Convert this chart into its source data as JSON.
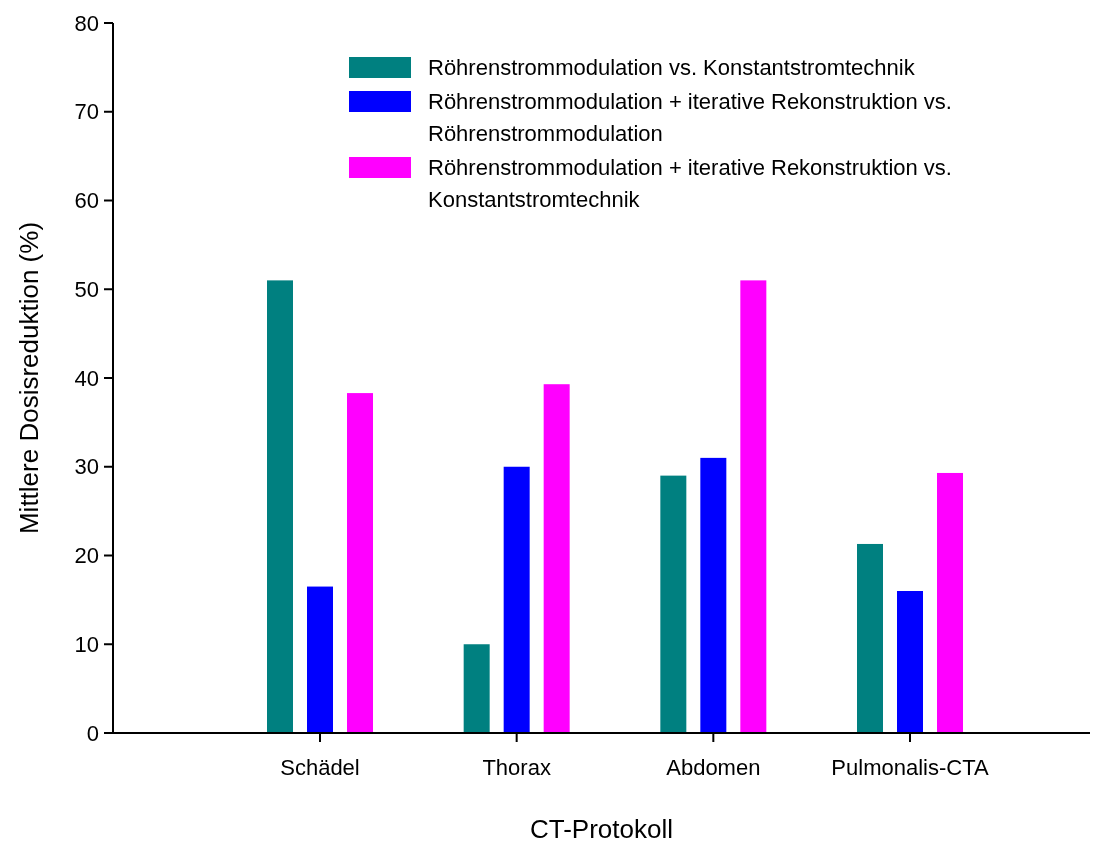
{
  "chart_data": {
    "type": "bar",
    "xlabel": "CT-Protokoll",
    "ylabel": "Mittlere Dosisreduktion (%)",
    "categories": [
      "Schädel",
      "Thorax",
      "Abdomen",
      "Pulmonalis-CTA"
    ],
    "series": [
      {
        "name": "Röhrenstrommodulation vs. Konstantstromtechnik",
        "color": "#008080",
        "values": [
          51,
          10,
          29,
          21.3
        ]
      },
      {
        "name": "Röhrenstrommodulation + iterative Rekonstruktion vs. Röhrenstrommodulation",
        "color": "#0000ff",
        "values": [
          16.5,
          30,
          31,
          16
        ]
      },
      {
        "name": "Röhrenstrommodulation + iterative Rekonstruktion vs. Konstantstromtechnik",
        "color": "#ff00ff",
        "values": [
          38.3,
          39.3,
          51,
          29.3
        ]
      }
    ],
    "ylim": [
      0,
      80
    ],
    "yticks": [
      0,
      10,
      20,
      30,
      40,
      50,
      60,
      70,
      80
    ],
    "legend": "top right",
    "grid": false
  }
}
